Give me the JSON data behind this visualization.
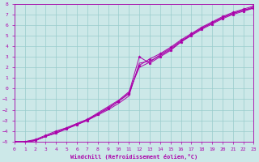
{
  "xlabel": "Windchill (Refroidissement éolien,°C)",
  "bg_color": "#cce8e8",
  "line_color": "#aa00aa",
  "grid_color": "#99cccc",
  "xlim": [
    0,
    23
  ],
  "ylim": [
    -5,
    8
  ],
  "xticks": [
    0,
    1,
    2,
    3,
    4,
    5,
    6,
    7,
    8,
    9,
    10,
    11,
    12,
    13,
    14,
    15,
    16,
    17,
    18,
    19,
    20,
    21,
    22,
    23
  ],
  "yticks": [
    -5,
    -4,
    -3,
    -2,
    -1,
    0,
    1,
    2,
    3,
    4,
    5,
    6,
    7,
    8
  ],
  "x_all": [
    0,
    1,
    2,
    3,
    4,
    5,
    6,
    7,
    8,
    9,
    10,
    11,
    12,
    13,
    14,
    15,
    16,
    17,
    18,
    19,
    20,
    21,
    22,
    23
  ],
  "line1_y": [
    -5.0,
    -5.0,
    -4.9,
    -4.5,
    -4.2,
    -3.8,
    -3.4,
    -3.0,
    -2.5,
    -2.0,
    -1.4,
    -0.7,
    2.4,
    2.6,
    3.1,
    3.7,
    4.4,
    5.1,
    5.7,
    6.2,
    6.7,
    7.1,
    7.4,
    7.6
  ],
  "line2_y": [
    -5.0,
    -5.0,
    -4.8,
    -4.4,
    -4.0,
    -3.7,
    -3.3,
    -2.9,
    -2.4,
    -1.9,
    -1.2,
    -0.5,
    2.2,
    2.8,
    3.3,
    3.9,
    4.6,
    5.2,
    5.8,
    6.3,
    6.8,
    7.2,
    7.5,
    7.8
  ],
  "line3_y": [
    -5.0,
    -5.1,
    -4.9,
    -4.5,
    -4.2,
    -3.8,
    -3.4,
    -3.0,
    -2.4,
    -1.8,
    -1.2,
    -0.4,
    3.0,
    2.4,
    3.0,
    3.6,
    4.4,
    5.0,
    5.6,
    6.1,
    6.6,
    7.0,
    7.3,
    7.6
  ],
  "line4_y": [
    -5.0,
    -5.0,
    -4.9,
    -4.5,
    -4.1,
    -3.7,
    -3.3,
    -2.9,
    -2.3,
    -1.7,
    -1.1,
    -0.3,
    2.0,
    2.5,
    3.2,
    3.8,
    4.5,
    5.1,
    5.7,
    6.2,
    6.7,
    7.1,
    7.4,
    7.7
  ],
  "line1_marker": false,
  "line2_marker": true,
  "line3_marker": true,
  "line4_marker": false
}
